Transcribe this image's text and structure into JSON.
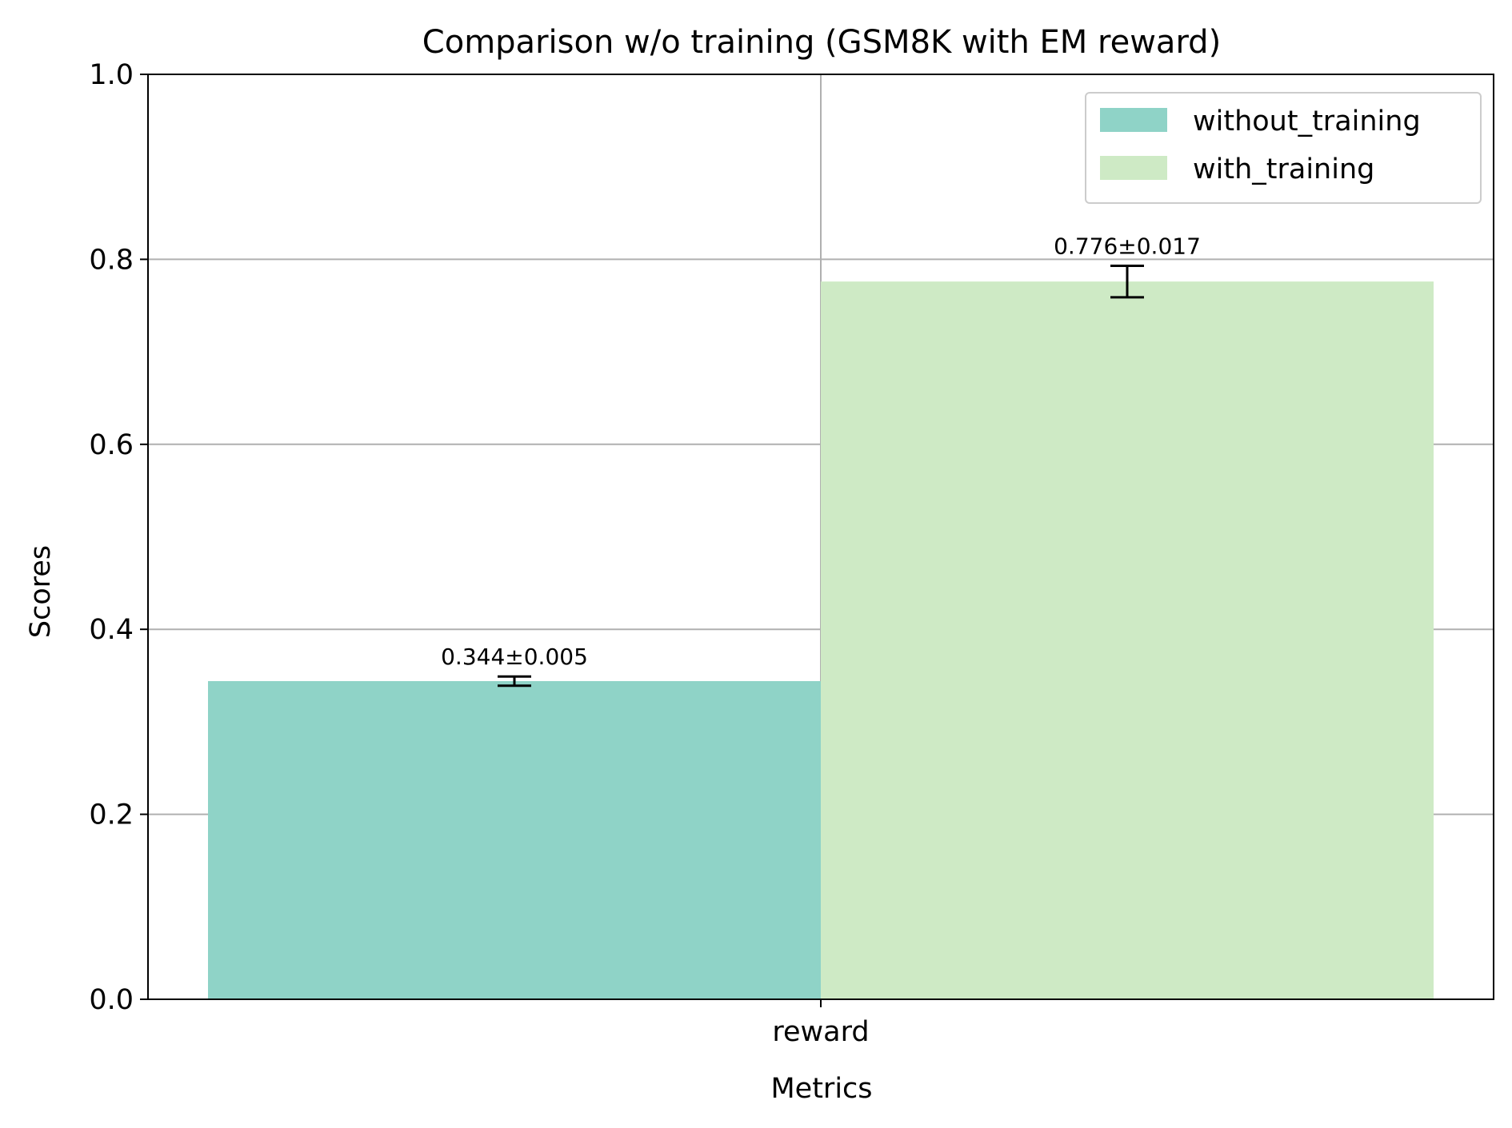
{
  "chart_data": {
    "type": "bar",
    "title": "Comparison w/o training (GSM8K with EM reward)",
    "xlabel": "Metrics",
    "ylabel": "Scores",
    "categories": [
      "reward"
    ],
    "ylim": [
      0,
      1.0
    ],
    "yticks": [
      0.0,
      0.2,
      0.4,
      0.6,
      0.8,
      1.0
    ],
    "ytick_labels": [
      "0.0",
      "0.2",
      "0.4",
      "0.6",
      "0.8",
      "1.0"
    ],
    "grid": true,
    "legend_position": "top-right",
    "series": [
      {
        "name": "without_training",
        "values": [
          0.344
        ],
        "errors": [
          0.005
        ],
        "label": "0.344±0.005",
        "color": "#8fd3c7"
      },
      {
        "name": "with_training",
        "values": [
          0.776
        ],
        "errors": [
          0.017
        ],
        "label": "0.776±0.017",
        "color": "#ceeac5"
      }
    ]
  }
}
